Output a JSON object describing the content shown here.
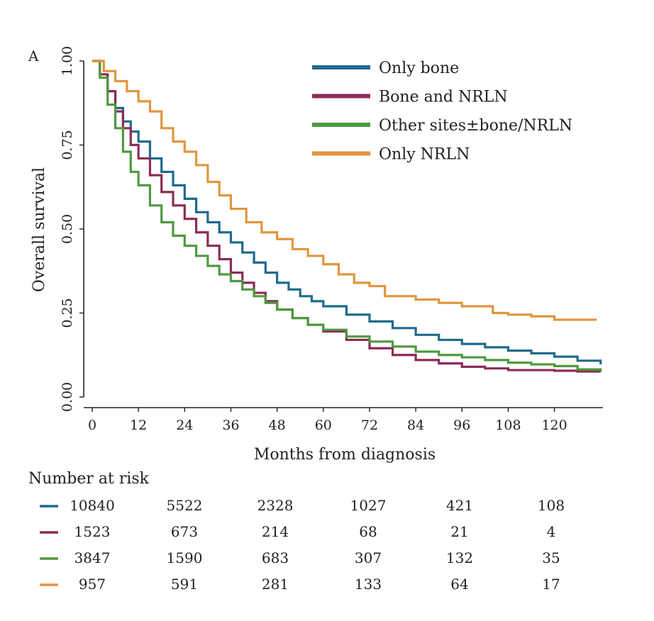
{
  "chart_data": {
    "type": "line",
    "panel_label": "A",
    "title": "",
    "xlabel": "Months from diagnosis",
    "ylabel": "Overall survival",
    "xlim": [
      0,
      132
    ],
    "ylim": [
      0,
      1
    ],
    "x_ticks": [
      0,
      12,
      24,
      36,
      48,
      60,
      72,
      84,
      96,
      108,
      120
    ],
    "y_ticks": [
      "0.00",
      "0.25",
      "0.50",
      "0.75",
      "1.00"
    ],
    "grid": false,
    "legend_position": "top-right",
    "step": true,
    "series": [
      {
        "name": "Only bone",
        "color": "#1f6b8c",
        "points": [
          [
            0,
            1.0
          ],
          [
            2,
            0.96
          ],
          [
            4,
            0.91
          ],
          [
            6,
            0.86
          ],
          [
            8,
            0.82
          ],
          [
            10,
            0.79
          ],
          [
            12,
            0.76
          ],
          [
            15,
            0.71
          ],
          [
            18,
            0.67
          ],
          [
            21,
            0.63
          ],
          [
            24,
            0.59
          ],
          [
            27,
            0.55
          ],
          [
            30,
            0.52
          ],
          [
            33,
            0.49
          ],
          [
            36,
            0.46
          ],
          [
            39,
            0.43
          ],
          [
            42,
            0.4
          ],
          [
            45,
            0.37
          ],
          [
            48,
            0.34
          ],
          [
            51,
            0.32
          ],
          [
            54,
            0.3
          ],
          [
            57,
            0.285
          ],
          [
            60,
            0.27
          ],
          [
            66,
            0.245
          ],
          [
            72,
            0.225
          ],
          [
            78,
            0.205
          ],
          [
            84,
            0.185
          ],
          [
            90,
            0.17
          ],
          [
            96,
            0.158
          ],
          [
            102,
            0.148
          ],
          [
            108,
            0.138
          ],
          [
            114,
            0.13
          ],
          [
            120,
            0.12
          ],
          [
            126,
            0.108
          ],
          [
            132,
            0.097
          ]
        ]
      },
      {
        "name": "Bone and NRLN",
        "color": "#8b2c55",
        "points": [
          [
            0,
            1.0
          ],
          [
            2,
            0.96
          ],
          [
            4,
            0.91
          ],
          [
            6,
            0.85
          ],
          [
            8,
            0.8
          ],
          [
            10,
            0.75
          ],
          [
            12,
            0.71
          ],
          [
            15,
            0.66
          ],
          [
            18,
            0.61
          ],
          [
            21,
            0.57
          ],
          [
            24,
            0.53
          ],
          [
            27,
            0.49
          ],
          [
            30,
            0.45
          ],
          [
            33,
            0.41
          ],
          [
            36,
            0.37
          ],
          [
            39,
            0.34
          ],
          [
            42,
            0.31
          ],
          [
            45,
            0.285
          ],
          [
            48,
            0.26
          ],
          [
            52,
            0.235
          ],
          [
            56,
            0.215
          ],
          [
            60,
            0.195
          ],
          [
            66,
            0.17
          ],
          [
            72,
            0.145
          ],
          [
            78,
            0.125
          ],
          [
            84,
            0.11
          ],
          [
            90,
            0.1
          ],
          [
            96,
            0.09
          ],
          [
            102,
            0.085
          ],
          [
            108,
            0.08
          ],
          [
            120,
            0.078
          ],
          [
            126,
            0.076
          ],
          [
            132,
            0.075
          ]
        ]
      },
      {
        "name": "Other sites±bone/NRLN",
        "color": "#4e9a3f",
        "points": [
          [
            0,
            1.0
          ],
          [
            2,
            0.95
          ],
          [
            4,
            0.87
          ],
          [
            6,
            0.8
          ],
          [
            8,
            0.73
          ],
          [
            10,
            0.67
          ],
          [
            12,
            0.63
          ],
          [
            15,
            0.57
          ],
          [
            18,
            0.52
          ],
          [
            21,
            0.48
          ],
          [
            24,
            0.45
          ],
          [
            27,
            0.42
          ],
          [
            30,
            0.39
          ],
          [
            33,
            0.365
          ],
          [
            36,
            0.345
          ],
          [
            39,
            0.32
          ],
          [
            42,
            0.3
          ],
          [
            45,
            0.28
          ],
          [
            48,
            0.26
          ],
          [
            52,
            0.235
          ],
          [
            56,
            0.215
          ],
          [
            60,
            0.2
          ],
          [
            66,
            0.18
          ],
          [
            72,
            0.165
          ],
          [
            78,
            0.15
          ],
          [
            84,
            0.135
          ],
          [
            90,
            0.125
          ],
          [
            96,
            0.118
          ],
          [
            102,
            0.11
          ],
          [
            108,
            0.102
          ],
          [
            114,
            0.097
          ],
          [
            120,
            0.092
          ],
          [
            126,
            0.082
          ],
          [
            132,
            0.075
          ]
        ]
      },
      {
        "name": "Only NRLN",
        "color": "#e0963d",
        "points": [
          [
            0,
            1.0
          ],
          [
            3,
            0.97
          ],
          [
            6,
            0.94
          ],
          [
            9,
            0.91
          ],
          [
            12,
            0.88
          ],
          [
            15,
            0.85
          ],
          [
            18,
            0.8
          ],
          [
            21,
            0.76
          ],
          [
            24,
            0.73
          ],
          [
            27,
            0.69
          ],
          [
            30,
            0.64
          ],
          [
            33,
            0.6
          ],
          [
            36,
            0.56
          ],
          [
            40,
            0.52
          ],
          [
            44,
            0.49
          ],
          [
            48,
            0.47
          ],
          [
            52,
            0.44
          ],
          [
            56,
            0.42
          ],
          [
            60,
            0.395
          ],
          [
            64,
            0.365
          ],
          [
            68,
            0.34
          ],
          [
            72,
            0.33
          ],
          [
            76,
            0.3
          ],
          [
            84,
            0.29
          ],
          [
            90,
            0.28
          ],
          [
            96,
            0.27
          ],
          [
            102,
            0.27
          ],
          [
            104,
            0.25
          ],
          [
            108,
            0.245
          ],
          [
            114,
            0.24
          ],
          [
            120,
            0.23
          ],
          [
            126,
            0.23
          ],
          [
            131,
            0.23
          ]
        ]
      }
    ],
    "risk_table": {
      "title": "Number at risk",
      "timepoints": [
        0,
        24,
        48,
        72,
        96,
        120
      ],
      "rows": [
        {
          "name": "Only bone",
          "color": "#1f6b8c",
          "values": [
            "10840",
            "5522",
            "2328",
            "1027",
            "421",
            "108"
          ]
        },
        {
          "name": "Bone and NRLN",
          "color": "#8b2c55",
          "values": [
            "1523",
            "673",
            "214",
            "68",
            "21",
            "4"
          ]
        },
        {
          "name": "Other sites±bone/NRLN",
          "color": "#4e9a3f",
          "values": [
            "3847",
            "1590",
            "683",
            "307",
            "132",
            "35"
          ]
        },
        {
          "name": "Only NRLN",
          "color": "#e0963d",
          "values": [
            "957",
            "591",
            "281",
            "133",
            "64",
            "17"
          ]
        }
      ]
    }
  }
}
